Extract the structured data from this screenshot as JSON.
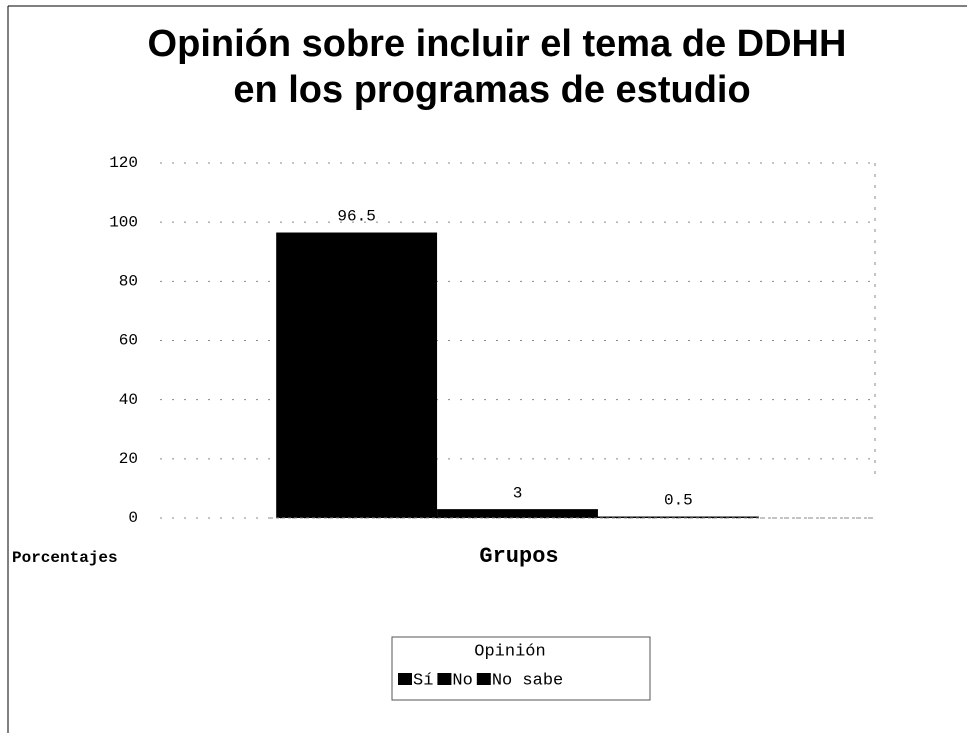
{
  "chart_data": {
    "type": "bar",
    "title": [
      "Opinión sobre incluir el tema de DDHH",
      "en los programas de estudio"
    ],
    "x_label": "Grupos",
    "y_label": "Porcentajes",
    "categories": [
      null
    ],
    "series": [
      {
        "name": "Sí",
        "color": "#000000",
        "values": [
          96.5
        ]
      },
      {
        "name": "No",
        "color": "#000000",
        "values": [
          3
        ]
      },
      {
        "name": "No sabe",
        "color": "#000000",
        "values": [
          0.5
        ]
      }
    ],
    "legend_title": "Opinión",
    "legend": "bottom",
    "ylim": [
      0,
      120
    ],
    "yticks": [
      0,
      20,
      40,
      60,
      80,
      100,
      120
    ],
    "grid": true
  }
}
